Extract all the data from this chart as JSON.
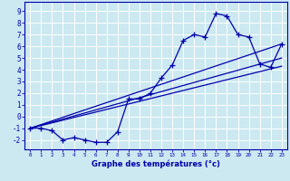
{
  "xlabel": "Graphe des températures (°c)",
  "xlim": [
    -0.5,
    23.5
  ],
  "ylim": [
    -2.8,
    9.8
  ],
  "xticks": [
    0,
    1,
    2,
    3,
    4,
    5,
    6,
    7,
    8,
    9,
    10,
    11,
    12,
    13,
    14,
    15,
    16,
    17,
    18,
    19,
    20,
    21,
    22,
    23
  ],
  "yticks": [
    -2,
    -1,
    0,
    1,
    2,
    3,
    4,
    5,
    6,
    7,
    8,
    9
  ],
  "background_color": "#cce8f0",
  "grid_color": "#ffffff",
  "line_color": "#0000aa",
  "line1_x": [
    0,
    1,
    2,
    3,
    4,
    5,
    6,
    7,
    8,
    9,
    10,
    11,
    12,
    13,
    14,
    15,
    16,
    17,
    18,
    19,
    20,
    21,
    22,
    23
  ],
  "line1_y": [
    -1,
    -1,
    -1.2,
    -2,
    -1.8,
    -2,
    -2.2,
    -2.2,
    -1.3,
    1.5,
    1.5,
    2.0,
    3.3,
    4.4,
    6.5,
    7.0,
    6.8,
    8.8,
    8.6,
    7.0,
    6.8,
    4.5,
    4.2,
    6.2
  ],
  "line2_x": [
    0,
    23
  ],
  "line2_y": [
    -1.0,
    6.2
  ],
  "line3_x": [
    0,
    23
  ],
  "line3_y": [
    -1.0,
    4.3
  ],
  "line4_x": [
    0,
    23
  ],
  "line4_y": [
    -1.0,
    5.0
  ]
}
